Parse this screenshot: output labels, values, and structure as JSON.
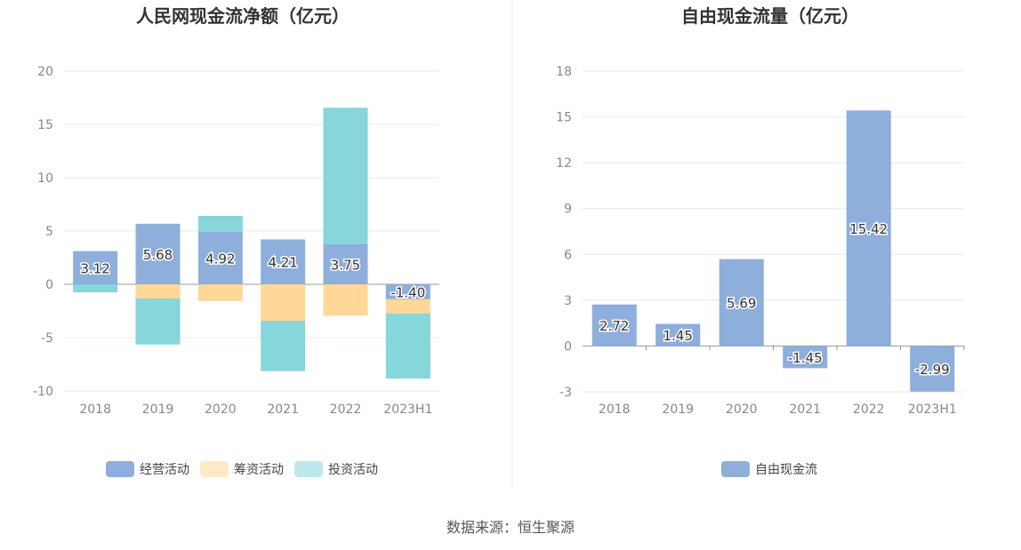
{
  "source": "数据来源：恒生聚源",
  "chart_data": [
    {
      "type": "bar",
      "stacked": true,
      "title": "人民网现金流净额（亿元）",
      "categories": [
        "2018",
        "2019",
        "2020",
        "2021",
        "2022",
        "2023H1"
      ],
      "ylim": [
        -10,
        20
      ],
      "yticks": [
        20,
        15,
        10,
        5,
        0,
        -5,
        -10
      ],
      "grid": true,
      "legend": "bottom",
      "series": [
        {
          "name": "经营活动",
          "color": "#8eaedb",
          "values": [
            3.12,
            5.68,
            4.92,
            4.21,
            3.75,
            -1.4
          ],
          "labels": [
            "3.12",
            "5.68",
            "4.92",
            "4.21",
            "3.75",
            "-1.40"
          ]
        },
        {
          "name": "筹资活动",
          "color": "#ffd797",
          "values": [
            0,
            -1.33,
            -1.56,
            -3.42,
            -2.94,
            -1.33
          ]
        },
        {
          "name": "投资活动",
          "color": "#86d6da",
          "values": [
            -0.75,
            -4.31,
            1.5,
            -4.72,
            12.81,
            -6.11
          ]
        }
      ]
    },
    {
      "type": "bar",
      "title": "自由现金流量（亿元）",
      "categories": [
        "2018",
        "2019",
        "2020",
        "2021",
        "2022",
        "2023H1"
      ],
      "ylim": [
        -3,
        18
      ],
      "yticks": [
        18,
        15,
        12,
        9,
        6,
        3,
        0,
        -3
      ],
      "grid": true,
      "legend": "bottom",
      "series": [
        {
          "name": "自由现金流",
          "color": "#8eaedb",
          "values": [
            2.72,
            1.45,
            5.69,
            -1.45,
            15.42,
            -2.99
          ],
          "labels": [
            "2.72",
            "1.45",
            "5.69",
            "-1.45",
            "15.42",
            "-2.99"
          ]
        }
      ]
    }
  ]
}
